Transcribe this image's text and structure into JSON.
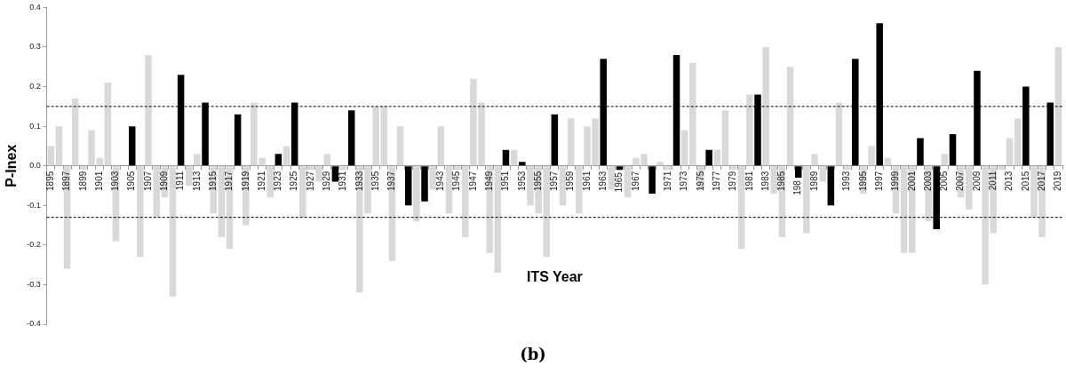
{
  "chart_data": {
    "type": "bar",
    "xlabel": "ITS Year",
    "ylabel": "P-Inex",
    "annotations": [
      "(b)"
    ],
    "categories": [
      "1895",
      null,
      "1897",
      null,
      "1899",
      null,
      "1901",
      null,
      "1903",
      null,
      "1905",
      null,
      "1907",
      null,
      "1909",
      null,
      "1911",
      null,
      "1913",
      null,
      "1915",
      null,
      "1917",
      null,
      "1919",
      null,
      "1921",
      null,
      "1923",
      null,
      "1925",
      null,
      "1927",
      null,
      "1929",
      null,
      "1931",
      null,
      "1933",
      null,
      "1935",
      null,
      "1937",
      null,
      null,
      null,
      null,
      null,
      "1943",
      null,
      "1945",
      null,
      "1947",
      null,
      "1949",
      null,
      "1951",
      null,
      "1953",
      null,
      "1955",
      null,
      "1957",
      null,
      "1959",
      null,
      "1961",
      null,
      "1963",
      null,
      "1965",
      null,
      "1967",
      null,
      null,
      null,
      "1971",
      null,
      "1973",
      null,
      "1975",
      null,
      "1977",
      null,
      "1979",
      null,
      "1981",
      null,
      "1983",
      null,
      "1985",
      null,
      "198",
      null,
      "1989",
      null,
      null,
      null,
      "1993",
      null,
      "1995",
      null,
      "1997",
      null,
      "1999",
      null,
      "2001",
      null,
      "2003",
      null,
      "2005",
      null,
      "2007",
      null,
      "2009",
      null,
      "2011",
      null,
      "2013",
      null,
      "2015",
      null,
      "2017",
      null,
      "2019"
    ],
    "values": [
      0.05,
      0.1,
      -0.26,
      0.17,
      -0.01,
      0.09,
      0.02,
      0.21,
      -0.19,
      0.0,
      0.1,
      -0.23,
      0.28,
      -0.13,
      -0.08,
      -0.33,
      0.23,
      -0.05,
      0.03,
      0.16,
      -0.12,
      -0.18,
      -0.21,
      0.13,
      -0.15,
      0.16,
      0.02,
      -0.08,
      0.03,
      0.05,
      0.16,
      -0.13,
      -0.01,
      -0.04,
      0.03,
      -0.04,
      -0.01,
      0.14,
      -0.32,
      -0.12,
      0.15,
      0.15,
      -0.24,
      0.1,
      -0.1,
      -0.14,
      -0.09,
      -0.06,
      0.1,
      -0.12,
      -0.01,
      -0.18,
      0.22,
      0.16,
      -0.22,
      -0.27,
      0.04,
      0.04,
      0.01,
      -0.1,
      -0.12,
      -0.23,
      0.13,
      -0.1,
      0.12,
      -0.12,
      0.1,
      0.12,
      0.27,
      -0.06,
      -0.01,
      -0.08,
      0.02,
      0.03,
      -0.07,
      0.01,
      -0.01,
      0.28,
      0.09,
      0.26,
      -0.06,
      0.04,
      0.04,
      0.14,
      -0.01,
      -0.21,
      0.18,
      0.18,
      0.3,
      -0.07,
      -0.18,
      0.25,
      -0.03,
      -0.17,
      0.03,
      -0.04,
      -0.1,
      0.16,
      -0.01,
      0.27,
      -0.07,
      0.05,
      0.36,
      0.02,
      -0.12,
      -0.22,
      -0.22,
      0.07,
      -0.14,
      -0.16,
      0.03,
      0.08,
      -0.08,
      -0.11,
      0.24,
      -0.3,
      -0.17,
      -0.01,
      0.07,
      0.12,
      0.2,
      -0.13,
      -0.18,
      0.16,
      0.3
    ],
    "colors": [
      "#d9d9d9",
      "#d9d9d9",
      "#d9d9d9",
      "#d9d9d9",
      "#d9d9d9",
      "#d9d9d9",
      "#d9d9d9",
      "#d9d9d9",
      "#d9d9d9",
      "#d9d9d9",
      "#000000",
      "#d9d9d9",
      "#d9d9d9",
      "#d9d9d9",
      "#d9d9d9",
      "#d9d9d9",
      "#000000",
      "#d9d9d9",
      "#d9d9d9",
      "#000000",
      "#d9d9d9",
      "#d9d9d9",
      "#d9d9d9",
      "#000000",
      "#d9d9d9",
      "#d9d9d9",
      "#d9d9d9",
      "#d9d9d9",
      "#000000",
      "#d9d9d9",
      "#000000",
      "#d9d9d9",
      "#d9d9d9",
      "#d9d9d9",
      "#d9d9d9",
      "#000000",
      "#d9d9d9",
      "#000000",
      "#d9d9d9",
      "#d9d9d9",
      "#d9d9d9",
      "#d9d9d9",
      "#d9d9d9",
      "#d9d9d9",
      "#000000",
      "#d9d9d9",
      "#000000",
      "#d9d9d9",
      "#d9d9d9",
      "#d9d9d9",
      "#d9d9d9",
      "#d9d9d9",
      "#d9d9d9",
      "#d9d9d9",
      "#d9d9d9",
      "#d9d9d9",
      "#000000",
      "#d9d9d9",
      "#000000",
      "#d9d9d9",
      "#d9d9d9",
      "#d9d9d9",
      "#000000",
      "#d9d9d9",
      "#d9d9d9",
      "#d9d9d9",
      "#d9d9d9",
      "#d9d9d9",
      "#000000",
      "#d9d9d9",
      "#000000",
      "#d9d9d9",
      "#d9d9d9",
      "#d9d9d9",
      "#000000",
      "#d9d9d9",
      "#d9d9d9",
      "#000000",
      "#d9d9d9",
      "#d9d9d9",
      "#d9d9d9",
      "#000000",
      "#d9d9d9",
      "#d9d9d9",
      "#d9d9d9",
      "#d9d9d9",
      "#d9d9d9",
      "#000000",
      "#d9d9d9",
      "#d9d9d9",
      "#d9d9d9",
      "#d9d9d9",
      "#000000",
      "#d9d9d9",
      "#d9d9d9",
      "#d9d9d9",
      "#000000",
      "#d9d9d9",
      "#d9d9d9",
      "#000000",
      "#d9d9d9",
      "#d9d9d9",
      "#000000",
      "#d9d9d9",
      "#d9d9d9",
      "#d9d9d9",
      "#d9d9d9",
      "#000000",
      "#d9d9d9",
      "#000000",
      "#d9d9d9",
      "#000000",
      "#d9d9d9",
      "#d9d9d9",
      "#000000",
      "#d9d9d9",
      "#d9d9d9",
      "#d9d9d9",
      "#d9d9d9",
      "#d9d9d9",
      "#000000",
      "#d9d9d9",
      "#d9d9d9",
      "#000000",
      "#d9d9d9"
    ],
    "ylim": [
      -0.4,
      0.4
    ],
    "yticks": [
      0.4,
      0.3,
      0.2,
      0.1,
      {
        "value": 0,
        "label": "0.0"
      },
      -0.1,
      -0.2,
      -0.3,
      -0.4
    ],
    "ref_lines": [
      {
        "axis": "y",
        "value": 0.15,
        "color": "#000000",
        "line_style": "dashed"
      },
      {
        "axis": "y",
        "value": -0.13,
        "color": "#000000",
        "line_style": "dashed"
      }
    ],
    "grid": false,
    "legend": false
  }
}
